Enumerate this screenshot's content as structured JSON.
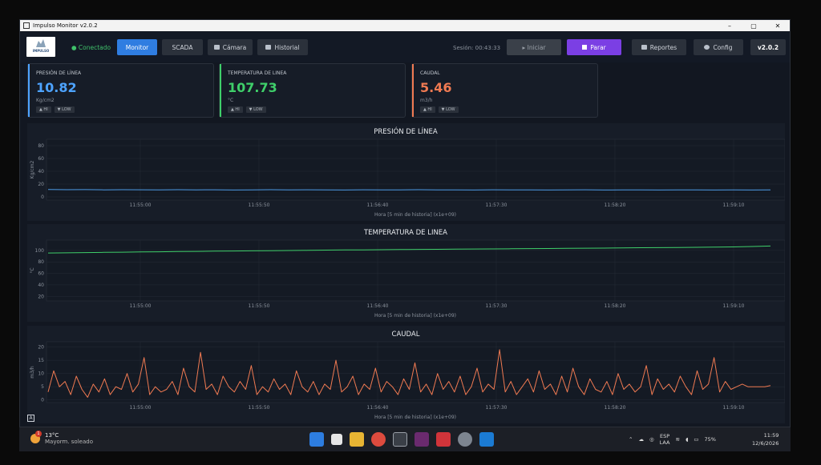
{
  "window": {
    "title": "Impulso Monitor  v2.0.2",
    "controls": [
      "–",
      "▢",
      "✕"
    ]
  },
  "logo_text": "IMPULSO",
  "status": "● Conectado",
  "nav": {
    "monitor": "Monitor",
    "scada": "SCADA",
    "camara": "Cámara",
    "historial": "Historial"
  },
  "session": "Sesión: 00:43:33",
  "actions": {
    "iniciar": "▸ Iniciar",
    "parar": "Parar",
    "reportes": "Reportes",
    "config": "Config",
    "version": "v2.0.2"
  },
  "kpis": [
    {
      "label": "PRESIÓN DE LÍNEA",
      "value": "10.82",
      "unit": "Kg/cm2",
      "color": "#4da3ff",
      "hi": "▲ HI",
      "low": "▼ LOW"
    },
    {
      "label": "TEMPERATURA DE LINEA",
      "value": "107.73",
      "unit": "°C",
      "color": "#3fcf6a",
      "hi": "▲ HI",
      "low": "▼ LOW"
    },
    {
      "label": "CAUDAL",
      "value": "5.46",
      "unit": "m3/h",
      "color": "#f07a52",
      "hi": "▲ HI",
      "low": "▼ LOW"
    }
  ],
  "chart_data": [
    {
      "type": "line",
      "title": "PRESIÓN DE LÍNEA",
      "xlabel": "Hora [5 min de historia] (x1e+09)",
      "ylabel": "Kg/cm2",
      "xticks": [
        "11:55:00",
        "11:55:50",
        "11:56:40",
        "11:57:30",
        "11:58:20",
        "11:59:10"
      ],
      "yticks": [
        0,
        20,
        40,
        60,
        80
      ],
      "ylim": [
        -5,
        90
      ],
      "color": "#4d9be6",
      "series": [
        {
          "values": [
            11.5,
            11.2,
            11.4,
            11.0,
            11.3,
            11.1,
            10.9,
            11.2,
            11.0,
            11.1,
            10.8,
            11.0,
            11.2,
            10.9,
            11.1,
            11.0,
            10.8,
            11.1,
            10.9,
            11.0,
            11.2,
            10.9,
            11.0,
            10.8,
            11.1,
            10.9,
            11.0,
            10.8,
            10.9,
            11.1,
            10.8,
            11.0,
            10.9,
            10.8,
            11.0,
            10.9,
            10.7,
            10.9,
            10.8,
            10.82
          ]
        }
      ]
    },
    {
      "type": "line",
      "title": "TEMPERATURA DE LINEA",
      "xlabel": "Hora [5 min de historia] (x1e+09)",
      "ylabel": "°C",
      "xticks": [
        "11:55:00",
        "11:55:50",
        "11:56:40",
        "11:57:30",
        "11:58:20",
        "11:59:10"
      ],
      "yticks": [
        20,
        40,
        60,
        80,
        100
      ],
      "ylim": [
        12,
        118
      ],
      "color": "#3fcf6a",
      "series": [
        {
          "values": [
            95.5,
            95.8,
            96.2,
            96.6,
            97.0,
            97.3,
            97.7,
            98.0,
            98.4,
            98.7,
            99.0,
            99.3,
            99.6,
            99.9,
            100.2,
            100.5,
            100.8,
            101.0,
            101.3,
            101.5,
            101.8,
            102.0,
            102.2,
            102.5,
            102.7,
            103.0,
            103.2,
            103.4,
            103.7,
            103.9,
            104.1,
            104.4,
            104.7,
            104.9,
            105.2,
            105.5,
            105.8,
            106.2,
            106.9,
            107.73
          ]
        }
      ]
    },
    {
      "type": "line",
      "title": "CAUDAL",
      "xlabel": "Hora [5 min de historia] (x1e+09)",
      "ylabel": "m3/h",
      "xticks": [
        "11:55:00",
        "11:55:50",
        "11:56:40",
        "11:57:30",
        "11:58:20",
        "11:59:10"
      ],
      "yticks": [
        0,
        5,
        10,
        15,
        20
      ],
      "ylim": [
        -1,
        22
      ],
      "color": "#f07a52",
      "series": [
        {
          "values": [
            3,
            11,
            5,
            7,
            2,
            9,
            4,
            1,
            6,
            3,
            8,
            2,
            5,
            4,
            10,
            3,
            6,
            16,
            2,
            5,
            3,
            4,
            7,
            2,
            12,
            5,
            3,
            18,
            4,
            6,
            2,
            9,
            5,
            3,
            7,
            4,
            13,
            2,
            5,
            3,
            8,
            4,
            6,
            2,
            11,
            5,
            3,
            7,
            2,
            6,
            4,
            15,
            3,
            5,
            9,
            2,
            6,
            4,
            12,
            3,
            7,
            5,
            2,
            8,
            4,
            14,
            3,
            6,
            2,
            10,
            4,
            7,
            3,
            9,
            2,
            5,
            12,
            3,
            6,
            4,
            19,
            3,
            7,
            2,
            5,
            8,
            3,
            11,
            4,
            6,
            2,
            9,
            3,
            12,
            5,
            2,
            8,
            4,
            3,
            7,
            2,
            10,
            4,
            6,
            3,
            5,
            13,
            2,
            8,
            4,
            6,
            3,
            9,
            5,
            2,
            11,
            4,
            6,
            16,
            3,
            7,
            4,
            5,
            6,
            5,
            5,
            5,
            5,
            5.46
          ]
        }
      ]
    }
  ],
  "taskbar": {
    "temp": "13°C",
    "weather": "Mayorm. soleado",
    "badge": "1",
    "lang1": "ESP",
    "lang2": "LAA",
    "battery": "75%",
    "time": "11:59",
    "date": "12/6/2026"
  }
}
